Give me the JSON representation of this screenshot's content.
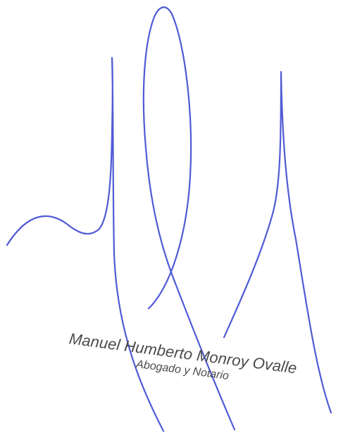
{
  "document": {
    "type": "signature",
    "ink_color": "#4f5bd5",
    "stamp_color": "#4a4a4a"
  },
  "stamp": {
    "name": "Manuel Humberto Monroy Ovalle",
    "title": "Abogado y Notario"
  }
}
